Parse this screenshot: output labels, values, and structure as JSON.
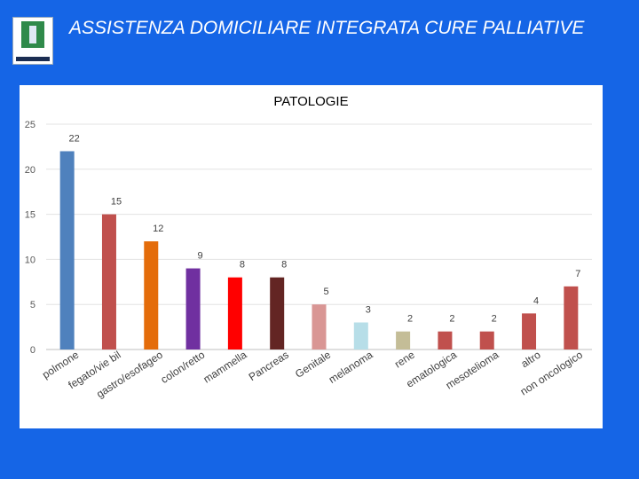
{
  "header": {
    "title": "ASSISTENZA DOMICILIARE  INTEGRATA CURE PALLIATIVE"
  },
  "chart_data": {
    "type": "bar",
    "title": "PATOLOGIE",
    "xlabel": "",
    "ylabel": "",
    "ylim": [
      0,
      25
    ],
    "yticks": [
      0,
      5,
      10,
      15,
      20,
      25
    ],
    "grid": true,
    "legend": "none",
    "categories": [
      "polmone",
      "fegato/vie bil",
      "gastro/esofageo",
      "colon/retto",
      "mammella",
      "Pancreas",
      "Genitale",
      "melanoma",
      "rene",
      "ematologica",
      "mesotelioma",
      "altro",
      "non oncologico"
    ],
    "values": [
      22,
      15,
      12,
      9,
      8,
      8,
      5,
      3,
      2,
      2,
      2,
      4,
      7
    ],
    "colors": [
      "#4f81bd",
      "#c0504d",
      "#e46c0a",
      "#7030a0",
      "#ff0000",
      "#632523",
      "#d99694",
      "#b7dee8",
      "#c4bd97",
      "#c0504d",
      "#c0504d",
      "#c0504d",
      "#c0504d"
    ]
  }
}
